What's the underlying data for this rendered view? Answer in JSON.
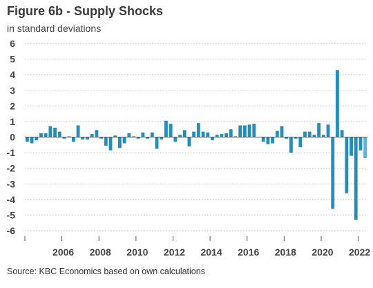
{
  "title": "Figure 6b - Supply Shocks",
  "subtitle": "in standard deviations",
  "source": "Source: KBC Economics based on own calculations",
  "chart_data": {
    "type": "bar",
    "title": "Figure 6b - Supply Shocks",
    "subtitle": "in standard deviations",
    "xlabel": "",
    "ylabel": "",
    "ylim": [
      -6,
      6
    ],
    "yticks": [
      6,
      5,
      4,
      3,
      2,
      1,
      0,
      -1,
      -2,
      -3,
      -4,
      -5,
      -6
    ],
    "x_tick_labels": [
      "2006",
      "2008",
      "2010",
      "2012",
      "2014",
      "2016",
      "2018",
      "2020",
      "2022"
    ],
    "x_start": "2004 Q1",
    "frequency": "quarterly",
    "grid": "horizontal dotted",
    "colors": {
      "bar": "#1f8fc0",
      "last_bar": "#5eb3d6",
      "grid": "#bdbdbd",
      "axis": "#555555"
    },
    "values": [
      -0.3,
      -0.4,
      -0.2,
      0.25,
      0.25,
      0.7,
      0.6,
      0.35,
      -0.1,
      0.05,
      -0.3,
      0.75,
      -0.15,
      -0.15,
      0.2,
      0.45,
      -0.1,
      -0.55,
      -0.85,
      0.1,
      -0.7,
      -0.4,
      0.25,
      0.05,
      -0.1,
      0.3,
      -0.1,
      0.3,
      -0.75,
      -0.15,
      1.05,
      0.85,
      -0.3,
      0.15,
      0.45,
      -0.6,
      0.35,
      0.9,
      0.35,
      0.3,
      -0.2,
      0.15,
      0.2,
      0.25,
      0.5,
      0.05,
      0.75,
      0.75,
      0.8,
      0.85,
      0.0,
      -0.3,
      -0.45,
      -0.4,
      0.4,
      0.7,
      -0.1,
      -1.0,
      -0.1,
      -0.65,
      0.35,
      0.35,
      0.15,
      0.9,
      0.15,
      0.8,
      -4.6,
      4.3,
      0.45,
      -3.6,
      -1.2,
      -5.3,
      -0.85,
      -1.35
    ]
  }
}
